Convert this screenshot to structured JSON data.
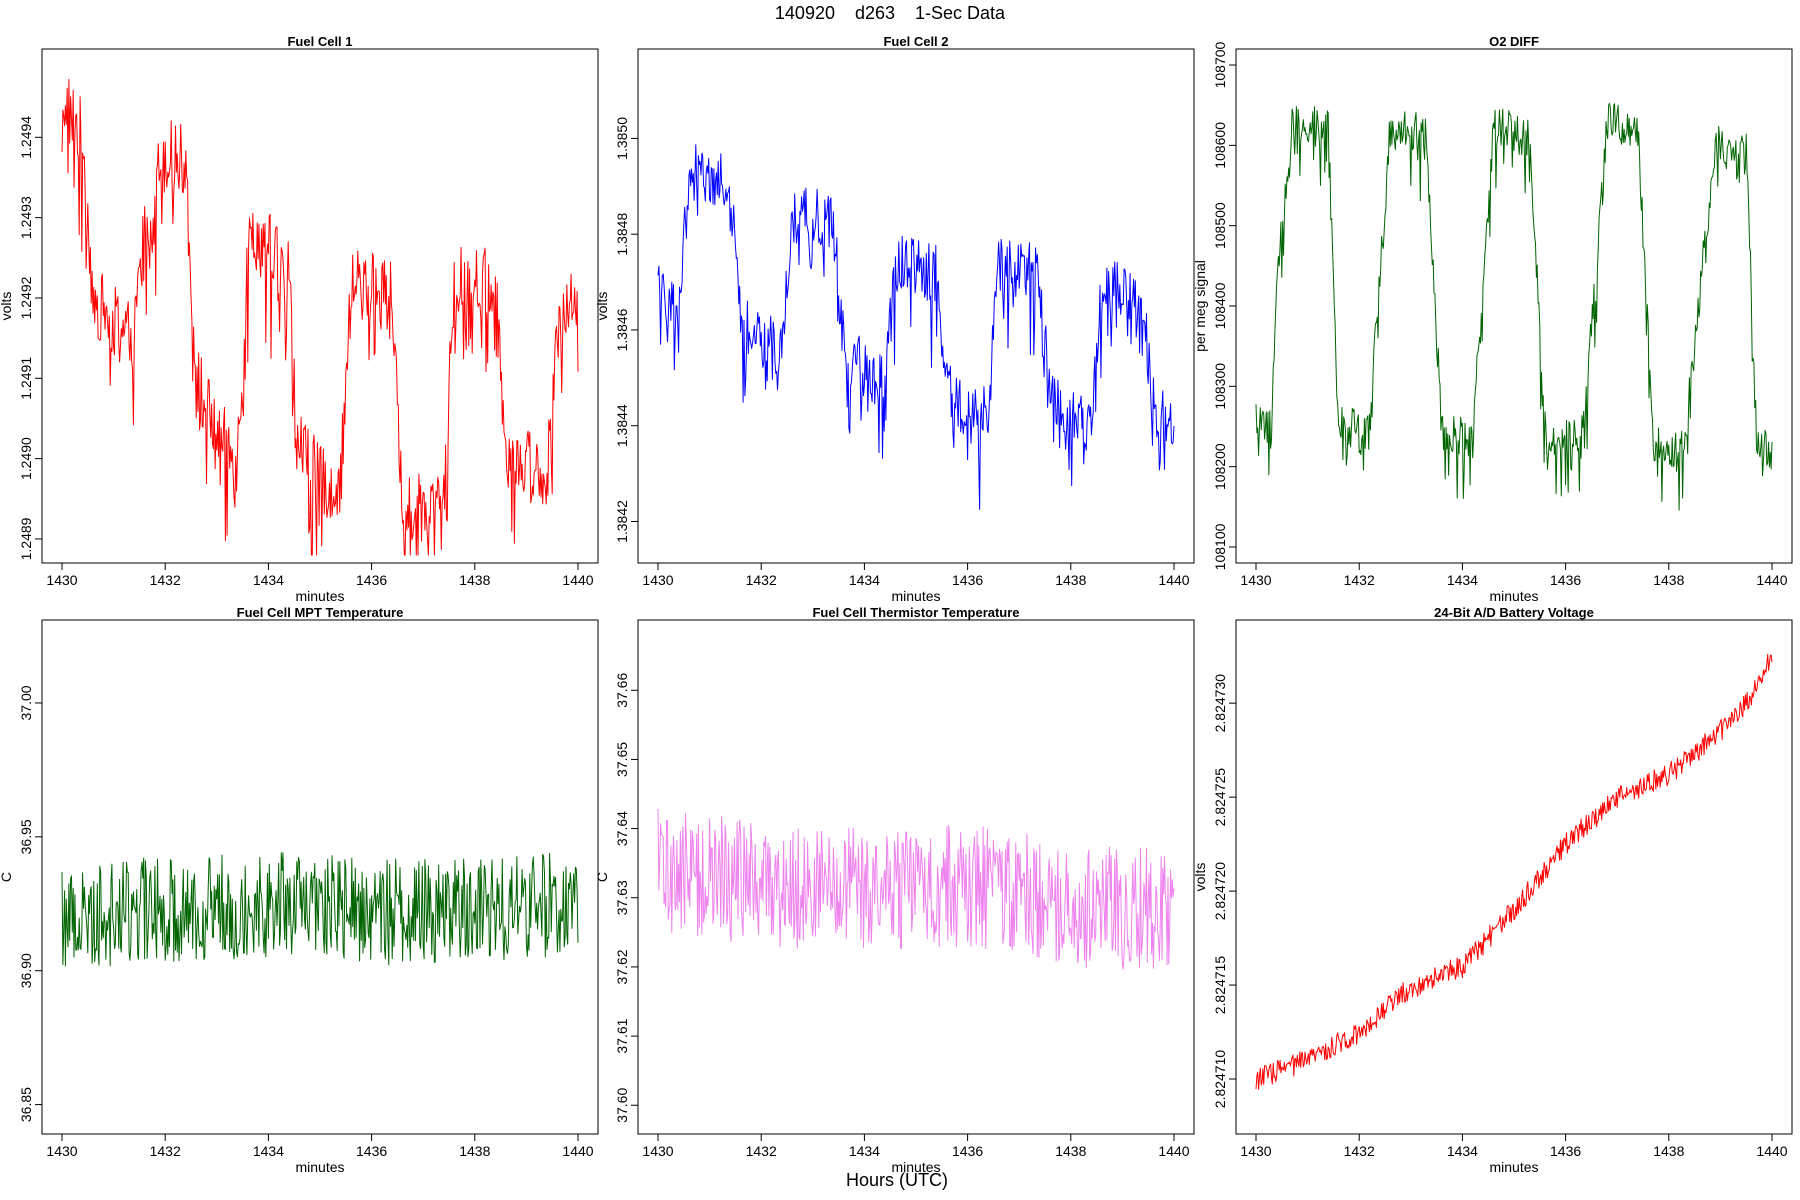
{
  "figure": {
    "title": "140920    d263    1-Sec Data",
    "footer": "Hours (UTC)"
  },
  "chart_data": [
    {
      "type": "line",
      "title": "Fuel Cell 1",
      "xlabel": "minutes",
      "ylabel": "volts",
      "color": "#ff0000",
      "xlim": [
        1430,
        1440
      ],
      "ylim": [
        1.24888,
        1.2495
      ],
      "xticks": [
        1430,
        1432,
        1434,
        1436,
        1438,
        1440
      ],
      "xtick_labels": [
        "1430",
        "1432",
        "1434",
        "1436",
        "1438",
        "1440"
      ],
      "yticks": [
        1.2489,
        1.249,
        1.2491,
        1.2492,
        1.2493,
        1.2494
      ],
      "ytick_labels": [
        "1.2489",
        "1.2490",
        "1.2491",
        "1.2492",
        "1.2493",
        "1.2494"
      ],
      "x": [
        1430.0,
        1430.4,
        1430.6,
        1431.0,
        1431.4,
        1431.6,
        1432.0,
        1432.4,
        1432.6,
        1433.0,
        1433.4,
        1433.6,
        1434.0,
        1434.4,
        1434.6,
        1435.0,
        1435.4,
        1435.6,
        1436.0,
        1436.4,
        1436.6,
        1437.0,
        1437.4,
        1437.6,
        1438.0,
        1438.4,
        1438.6,
        1439.0,
        1439.4,
        1439.6,
        1440.0
      ],
      "y": [
        1.24945,
        1.2494,
        1.2492,
        1.24917,
        1.24915,
        1.2493,
        1.24938,
        1.24937,
        1.2491,
        1.24903,
        1.249,
        1.24927,
        1.24927,
        1.24923,
        1.24902,
        1.24897,
        1.24897,
        1.24922,
        1.24922,
        1.2492,
        1.24893,
        1.24894,
        1.24895,
        1.24922,
        1.24922,
        1.24922,
        1.24901,
        1.249,
        1.24898,
        1.24918,
        1.24919
      ],
      "noise": 4.5e-05,
      "downspikes": true
    },
    {
      "type": "line",
      "title": "Fuel Cell 2",
      "xlabel": "minutes",
      "ylabel": "volts",
      "color": "#0000ff",
      "xlim": [
        1430,
        1440
      ],
      "ylim": [
        1.38413,
        1.38517
      ],
      "xticks": [
        1430,
        1432,
        1434,
        1436,
        1438,
        1440
      ],
      "xtick_labels": [
        "1430",
        "1432",
        "1434",
        "1436",
        "1438",
        "1440"
      ],
      "yticks": [
        1.3842,
        1.3844,
        1.3846,
        1.3848,
        1.385
      ],
      "ytick_labels": [
        "1.3842",
        "1.3844",
        "1.3846",
        "1.3848",
        "1.3850"
      ],
      "x": [
        1430.0,
        1430.4,
        1430.6,
        1431.0,
        1431.4,
        1431.6,
        1432.0,
        1432.4,
        1432.6,
        1433.0,
        1433.4,
        1433.6,
        1434.0,
        1434.4,
        1434.6,
        1435.0,
        1435.4,
        1435.6,
        1436.0,
        1436.4,
        1436.6,
        1437.0,
        1437.4,
        1437.6,
        1438.0,
        1438.4,
        1438.6,
        1439.0,
        1439.4,
        1439.6,
        1440.0
      ],
      "y": [
        1.38468,
        1.38465,
        1.38493,
        1.38492,
        1.3849,
        1.38462,
        1.38458,
        1.38456,
        1.38484,
        1.38484,
        1.38482,
        1.38456,
        1.38452,
        1.38448,
        1.38474,
        1.38473,
        1.38472,
        1.38448,
        1.38443,
        1.38442,
        1.38474,
        1.38474,
        1.38472,
        1.38446,
        1.38442,
        1.3844,
        1.38469,
        1.38468,
        1.38466,
        1.38444,
        1.3844
      ],
      "noise": 6e-05,
      "downspikes": true
    },
    {
      "type": "line",
      "title": "O2 DIFF",
      "xlabel": "minutes",
      "ylabel": "per meg signal",
      "color": "#006400",
      "xlim": [
        1430,
        1440
      ],
      "ylim": [
        108090,
        108710
      ],
      "xticks": [
        1430,
        1432,
        1434,
        1436,
        1438,
        1440
      ],
      "xtick_labels": [
        "1430",
        "1432",
        "1434",
        "1436",
        "1438",
        "1440"
      ],
      "yticks": [
        108100,
        108200,
        108300,
        108400,
        108500,
        108600,
        108700
      ],
      "ytick_labels": [
        "108100",
        "108200",
        "108300",
        "108400",
        "108500",
        "108600",
        "108700"
      ],
      "x": [
        1430.0,
        1430.3,
        1430.4,
        1430.7,
        1431.4,
        1431.6,
        1432.2,
        1432.4,
        1432.6,
        1433.3,
        1433.6,
        1434.2,
        1434.4,
        1434.6,
        1435.3,
        1435.6,
        1436.3,
        1436.6,
        1436.8,
        1437.4,
        1437.7,
        1438.3,
        1438.6,
        1438.9,
        1439.5,
        1439.7,
        1440.0
      ],
      "y": [
        108260,
        108245,
        108430,
        108630,
        108620,
        108250,
        108245,
        108440,
        108620,
        108615,
        108240,
        108235,
        108430,
        108625,
        108610,
        108245,
        108230,
        108440,
        108630,
        108620,
        108230,
        108220,
        108420,
        108605,
        108590,
        108240,
        108220
      ],
      "noise": 25,
      "downspikes": true
    },
    {
      "type": "line",
      "title": "Fuel Cell MPT Temperature",
      "xlabel": "minutes",
      "ylabel": "C",
      "color": "#006400",
      "xlim": [
        1430,
        1440
      ],
      "ylim": [
        36.842,
        37.028
      ],
      "xticks": [
        1430,
        1432,
        1434,
        1436,
        1438,
        1440
      ],
      "xtick_labels": [
        "1430",
        "1432",
        "1434",
        "1436",
        "1438",
        "1440"
      ],
      "yticks": [
        36.85,
        36.9,
        36.95,
        37.0
      ],
      "ytick_labels": [
        "36.85",
        "36.90",
        "36.95",
        "37.00"
      ],
      "x": [
        1430.0,
        1432.0,
        1434.0,
        1436.0,
        1438.0,
        1440.0
      ],
      "y": [
        36.92,
        36.923,
        36.925,
        36.922,
        36.923,
        36.925
      ],
      "noise": 0.02,
      "downspikes": false
    },
    {
      "type": "line",
      "title": "Fuel Cell Thermistor Temperature",
      "xlabel": "minutes",
      "ylabel": "C",
      "color": "#ee82ee",
      "xlim": [
        1430,
        1440
      ],
      "ylim": [
        37.597,
        37.669
      ],
      "xticks": [
        1430,
        1432,
        1434,
        1436,
        1438,
        1440
      ],
      "xtick_labels": [
        "1430",
        "1432",
        "1434",
        "1436",
        "1438",
        "1440"
      ],
      "yticks": [
        37.6,
        37.61,
        37.62,
        37.63,
        37.64,
        37.65,
        37.66
      ],
      "ytick_labels": [
        "37.60",
        "37.61",
        "37.62",
        "37.63",
        "37.64",
        "37.65",
        "37.66"
      ],
      "x": [
        1430.0,
        1432.0,
        1434.0,
        1436.0,
        1438.0,
        1440.0
      ],
      "y": [
        37.634,
        37.632,
        37.631,
        37.632,
        37.629,
        37.628
      ],
      "noise": 0.009,
      "downspikes": false
    },
    {
      "type": "line",
      "title": "24-Bit A/D Battery Voltage",
      "xlabel": "minutes",
      "ylabel": "volts",
      "color": "#ff0000",
      "xlim": [
        1430,
        1440
      ],
      "ylim": [
        2.8247075,
        2.824734
      ],
      "xticks": [
        1430,
        1432,
        1434,
        1436,
        1438,
        1440
      ],
      "xtick_labels": [
        "1430",
        "1432",
        "1434",
        "1436",
        "1438",
        "1440"
      ],
      "yticks": [
        2.82471,
        2.824715,
        2.82472,
        2.824725,
        2.82473
      ],
      "ytick_labels": [
        "2.824710",
        "2.824715",
        "2.824720",
        "2.824725",
        "2.824730"
      ],
      "x": [
        1430.0,
        1431.0,
        1432.0,
        1432.8,
        1433.5,
        1434.0,
        1435.0,
        1436.0,
        1437.0,
        1438.0,
        1439.0,
        1439.5,
        1440.0
      ],
      "y": [
        2.82471,
        2.824711,
        2.8247125,
        2.8247145,
        2.8247155,
        2.824716,
        2.824719,
        2.8247225,
        2.824725,
        2.8247262,
        2.8247285,
        2.82473,
        2.8247325
      ],
      "noise": 6e-07,
      "downspikes": false
    }
  ]
}
